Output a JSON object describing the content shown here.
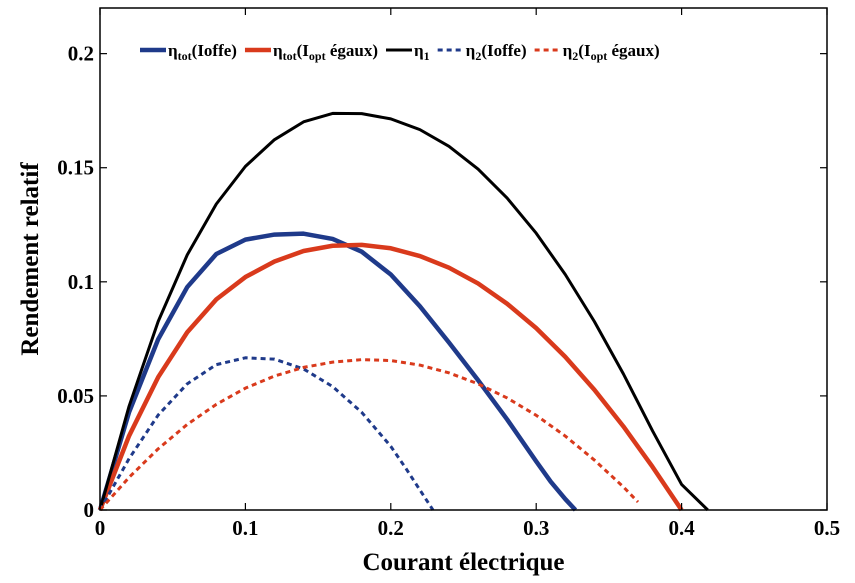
{
  "chart_data": {
    "type": "line",
    "title": "",
    "xlabel": "Courant électrique",
    "ylabel": "Rendement relatif",
    "xlim": [
      0,
      0.5
    ],
    "ylim": [
      0,
      0.22
    ],
    "xticks": [
      0,
      0.1,
      0.2,
      0.3,
      0.4,
      0.5
    ],
    "yticks": [
      0,
      0.05,
      0.1,
      0.15,
      0.2
    ],
    "xtick_labels": [
      "0",
      "0.1",
      "0.2",
      "0.3",
      "0.4",
      "0.5"
    ],
    "ytick_labels": [
      "0",
      "0.05",
      "0.1",
      "0.15",
      "0.2"
    ],
    "grid": false,
    "legend_position": "top",
    "series": [
      {
        "name": "η_tot(Ioffe)",
        "legend_base": "η",
        "legend_sub": "tot",
        "legend_rest": "(Ioffe)",
        "color": "#1f3a8a",
        "style": "solid",
        "width": "thick",
        "x": [
          0,
          0.02,
          0.04,
          0.06,
          0.08,
          0.1,
          0.12,
          0.14,
          0.16,
          0.18,
          0.2,
          0.22,
          0.24,
          0.26,
          0.28,
          0.3,
          0.31,
          0.32,
          0.327
        ],
        "y": [
          0,
          0.0429,
          0.0748,
          0.0977,
          0.1122,
          0.1185,
          0.1207,
          0.1211,
          0.1188,
          0.1132,
          0.1032,
          0.0893,
          0.0734,
          0.0569,
          0.0397,
          0.0213,
          0.0124,
          0.0048,
          0
        ]
      },
      {
        "name": "η_tot(I_opt égaux)",
        "legend_base": "η",
        "legend_sub": "tot",
        "legend_rest": "(I",
        "legend_sub2": "opt",
        "legend_rest2": " égaux)",
        "color": "#d93a1c",
        "style": "solid",
        "width": "thick",
        "x": [
          0,
          0.02,
          0.04,
          0.06,
          0.08,
          0.1,
          0.12,
          0.14,
          0.16,
          0.18,
          0.2,
          0.22,
          0.24,
          0.26,
          0.28,
          0.3,
          0.32,
          0.34,
          0.36,
          0.38,
          0.4
        ],
        "y": [
          0,
          0.0325,
          0.0582,
          0.0779,
          0.0923,
          0.1021,
          0.1089,
          0.1135,
          0.1158,
          0.1162,
          0.1147,
          0.1113,
          0.1062,
          0.0993,
          0.0904,
          0.0797,
          0.0671,
          0.0527,
          0.0366,
          0.0189,
          0
        ]
      },
      {
        "name": "η_1",
        "legend_base": "η",
        "legend_sub": "1",
        "legend_rest": "",
        "color": "#000000",
        "style": "solid",
        "width": "medium",
        "x": [
          0,
          0.02,
          0.04,
          0.06,
          0.08,
          0.1,
          0.12,
          0.14,
          0.16,
          0.18,
          0.2,
          0.22,
          0.24,
          0.26,
          0.28,
          0.3,
          0.32,
          0.34,
          0.36,
          0.38,
          0.4,
          0.418
        ],
        "y": [
          0,
          0.0455,
          0.0826,
          0.1118,
          0.1341,
          0.1506,
          0.1623,
          0.1701,
          0.1738,
          0.1737,
          0.1714,
          0.1667,
          0.1594,
          0.1494,
          0.1367,
          0.1213,
          0.1032,
          0.0826,
          0.0596,
          0.0347,
          0.0112,
          0
        ]
      },
      {
        "name": "η_2(Ioffe)",
        "legend_base": "η",
        "legend_sub": "2",
        "legend_rest": "(Ioffe)",
        "color": "#1f3a8a",
        "style": "dashed",
        "width": "medium",
        "x": [
          0,
          0.02,
          0.04,
          0.06,
          0.08,
          0.1,
          0.12,
          0.14,
          0.16,
          0.18,
          0.2,
          0.21,
          0.22,
          0.229
        ],
        "y": [
          0,
          0.0225,
          0.0416,
          0.0553,
          0.0637,
          0.0667,
          0.0661,
          0.0618,
          0.0541,
          0.0428,
          0.0279,
          0.0186,
          0.0088,
          0
        ]
      },
      {
        "name": "η_2(I_opt égaux)",
        "legend_base": "η",
        "legend_sub": "2",
        "legend_rest": "(I",
        "legend_sub2": "opt",
        "legend_rest2": " égaux)",
        "color": "#d93a1c",
        "style": "dashed",
        "width": "medium",
        "x": [
          0,
          0.02,
          0.04,
          0.06,
          0.08,
          0.1,
          0.12,
          0.14,
          0.16,
          0.18,
          0.2,
          0.22,
          0.24,
          0.26,
          0.28,
          0.3,
          0.32,
          0.34,
          0.36,
          0.37
        ],
        "y": [
          0,
          0.0143,
          0.0268,
          0.0375,
          0.0463,
          0.0534,
          0.0587,
          0.0625,
          0.0648,
          0.0659,
          0.0655,
          0.0635,
          0.0601,
          0.0553,
          0.0491,
          0.0415,
          0.0324,
          0.0219,
          0.0101,
          0.0035
        ]
      }
    ]
  }
}
